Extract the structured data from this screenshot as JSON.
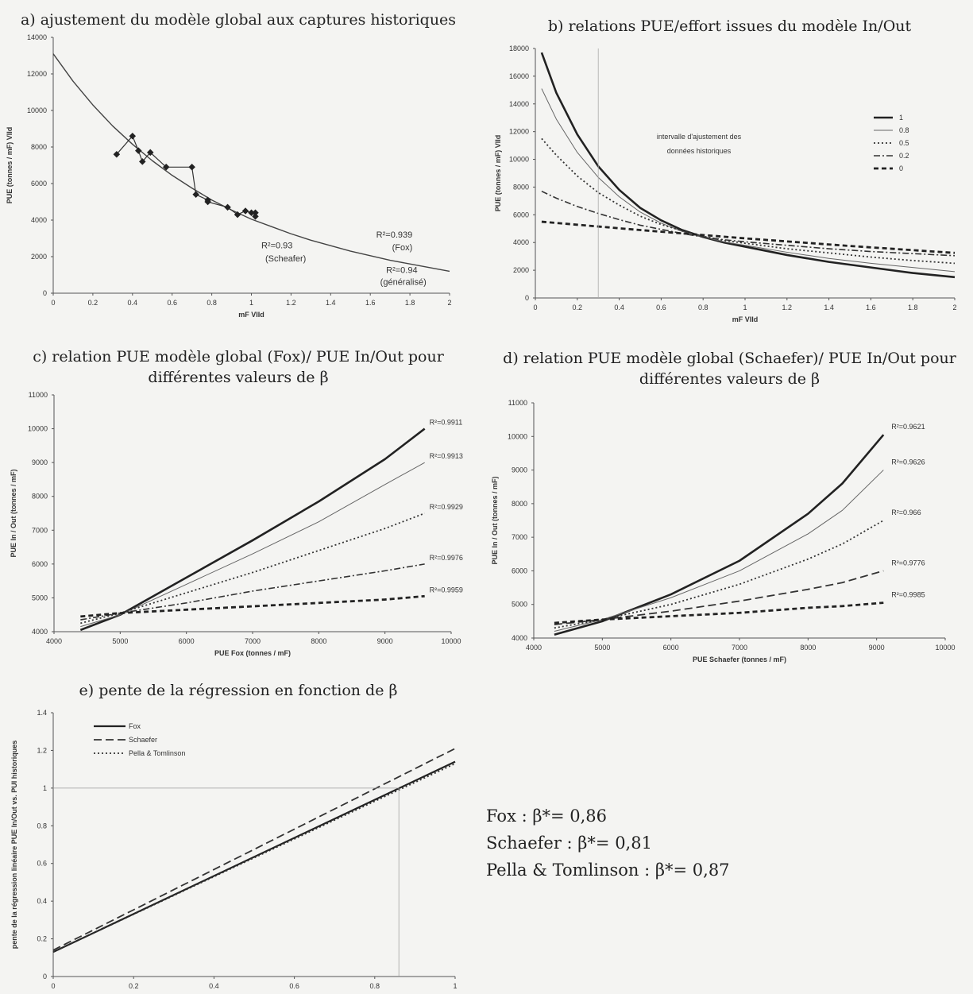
{
  "chart_data": [
    {
      "id": "a",
      "type": "line",
      "title": "a) ajustement du modèle global aux captures historiques",
      "xlabel": "mF VIId",
      "ylabel": "PUE (tonnes / mF) VIId",
      "xlim": [
        0,
        2
      ],
      "ylim": [
        0,
        14000
      ],
      "xticks": [
        "0",
        "0.2",
        "0.4",
        "0.6",
        "0.8",
        "1",
        "1.2",
        "1.4",
        "1.6",
        "1.8",
        "2"
      ],
      "yticks": [
        "0",
        "2000",
        "4000",
        "6000",
        "8000",
        "10000",
        "12000",
        "14000"
      ],
      "series": [
        {
          "style": "fit",
          "x": [
            0,
            0.1,
            0.2,
            0.3,
            0.4,
            0.5,
            0.6,
            0.7,
            0.8,
            0.9,
            1.0,
            1.1,
            1.2,
            1.3,
            1.4,
            1.5,
            1.6,
            1.7,
            1.8,
            1.9,
            2.0
          ],
          "y": [
            13100,
            11600,
            10300,
            9150,
            8150,
            7250,
            6450,
            5750,
            5100,
            4550,
            4050,
            3650,
            3250,
            2900,
            2600,
            2300,
            2050,
            1800,
            1600,
            1400,
            1200
          ]
        },
        {
          "style": "observed",
          "x": [
            0.32,
            0.4,
            0.43,
            0.45,
            0.49,
            0.57,
            0.7,
            0.72,
            0.78,
            0.78,
            0.88,
            0.93,
            0.97,
            1.0,
            1.02,
            1.02
          ],
          "y": [
            7600,
            8600,
            7800,
            7200,
            7700,
            6900,
            6900,
            5400,
            5100,
            5000,
            4700,
            4300,
            4500,
            4400,
            4400,
            4200
          ]
        }
      ],
      "annotations": [
        {
          "text": "R²=0.93",
          "x": 1.05,
          "y": 2450
        },
        {
          "text": "(Scheafer)",
          "x": 1.07,
          "y": 1750
        },
        {
          "text": "R²=0.939",
          "x": 1.63,
          "y": 3050
        },
        {
          "text": "(Fox)",
          "x": 1.71,
          "y": 2350
        },
        {
          "text": "R²=0.94",
          "x": 1.68,
          "y": 1100
        },
        {
          "text": "(généralisé)",
          "x": 1.65,
          "y": 450
        }
      ]
    },
    {
      "id": "b",
      "type": "line",
      "title": "b) relations PUE/effort issues du modèle In/Out",
      "xlabel": "mF VIId",
      "ylabel": "PUE (tonnes / mF) VIId",
      "xlim": [
        0,
        2
      ],
      "ylim": [
        0,
        18000
      ],
      "xticks": [
        "0",
        "0.2",
        "0.4",
        "0.6",
        "0.8",
        "1",
        "1.2",
        "1.4",
        "1.6",
        "1.8",
        "2"
      ],
      "yticks": [
        "0",
        "2000",
        "4000",
        "6000",
        "8000",
        "10000",
        "12000",
        "14000",
        "16000",
        "18000"
      ],
      "legend_position": "right",
      "annotation": "intervalle d'ajustement des données historiques",
      "series": [
        {
          "name": "1",
          "style": "solid-thick",
          "x": [
            0.03,
            0.1,
            0.2,
            0.3,
            0.4,
            0.5,
            0.6,
            0.7,
            0.8,
            0.9,
            1.0,
            1.2,
            1.4,
            1.6,
            1.8,
            2.0
          ],
          "y": [
            17700,
            14800,
            11800,
            9500,
            7800,
            6500,
            5600,
            4900,
            4400,
            4000,
            3700,
            3100,
            2600,
            2200,
            1800,
            1500
          ]
        },
        {
          "name": "0.8",
          "style": "solid-thin",
          "x": [
            0.03,
            0.1,
            0.2,
            0.3,
            0.4,
            0.5,
            0.6,
            0.7,
            0.8,
            0.9,
            1.0,
            1.2,
            1.4,
            1.6,
            1.8,
            2.0
          ],
          "y": [
            15100,
            12900,
            10500,
            8700,
            7300,
            6200,
            5400,
            4800,
            4400,
            4050,
            3800,
            3300,
            2850,
            2500,
            2200,
            1900
          ]
        },
        {
          "name": "0.5",
          "style": "dotted",
          "x": [
            0.03,
            0.1,
            0.2,
            0.3,
            0.4,
            0.5,
            0.6,
            0.7,
            0.8,
            0.9,
            1.0,
            1.2,
            1.4,
            1.6,
            1.8,
            2.0
          ],
          "y": [
            11500,
            10300,
            8800,
            7600,
            6700,
            5900,
            5300,
            4850,
            4450,
            4150,
            3950,
            3550,
            3250,
            2950,
            2700,
            2500
          ]
        },
        {
          "name": "0.2",
          "style": "dashdot",
          "x": [
            0.03,
            0.1,
            0.2,
            0.3,
            0.4,
            0.5,
            0.6,
            0.7,
            0.8,
            0.9,
            1.0,
            1.2,
            1.4,
            1.6,
            1.8,
            2.0
          ],
          "y": [
            7700,
            7200,
            6600,
            6100,
            5650,
            5250,
            4950,
            4650,
            4400,
            4200,
            4050,
            3800,
            3550,
            3350,
            3200,
            3050
          ]
        },
        {
          "name": "0",
          "style": "dashed-thick",
          "x": [
            0.03,
            0.5,
            1.0,
            1.5,
            2.0
          ],
          "y": [
            5500,
            4900,
            4300,
            3750,
            3250
          ]
        }
      ]
    },
    {
      "id": "c",
      "type": "line",
      "title": "c) relation PUE modèle global (Fox)/ PUE In/Out pour différentes valeurs de β",
      "xlabel": "PUE Fox (tonnes / mF)",
      "ylabel": "PUE In / Out (tonnes / mF)",
      "xlim": [
        4000,
        10000
      ],
      "ylim": [
        4000,
        11000
      ],
      "xticks": [
        "4000",
        "5000",
        "6000",
        "7000",
        "8000",
        "9000",
        "10000"
      ],
      "yticks": [
        "4000",
        "5000",
        "6000",
        "7000",
        "8000",
        "9000",
        "10000",
        "11000"
      ],
      "series": [
        {
          "label": "R²=0.9911",
          "style": "solid-thick",
          "x": [
            4400,
            5000,
            6000,
            7000,
            8000,
            9000,
            9600
          ],
          "y": [
            4050,
            4500,
            5600,
            6700,
            7850,
            9100,
            10000
          ]
        },
        {
          "label": "R²=0.9913",
          "style": "solid-thin",
          "x": [
            4400,
            5000,
            6000,
            7000,
            8000,
            9000,
            9600
          ],
          "y": [
            4150,
            4500,
            5400,
            6300,
            7250,
            8350,
            9000
          ]
        },
        {
          "label": "R²=0.9929",
          "style": "dotted",
          "x": [
            4400,
            5000,
            6000,
            7000,
            8000,
            9000,
            9600
          ],
          "y": [
            4250,
            4550,
            5150,
            5750,
            6400,
            7050,
            7500
          ]
        },
        {
          "label": "R²=0.9976",
          "style": "dashdot",
          "x": [
            4400,
            5000,
            6000,
            7000,
            8000,
            9000,
            9600
          ],
          "y": [
            4350,
            4550,
            4850,
            5200,
            5500,
            5800,
            6000
          ]
        },
        {
          "label": "R²=0.9959",
          "style": "dashed-thick",
          "x": [
            4400,
            5000,
            6000,
            7000,
            8000,
            9000,
            9600
          ],
          "y": [
            4450,
            4550,
            4650,
            4750,
            4850,
            4950,
            5050
          ]
        }
      ]
    },
    {
      "id": "d",
      "type": "line",
      "title": "d) relation PUE modèle global (Schaefer)/ PUE In/Out pour différentes valeurs de β",
      "xlabel": "PUE Schaefer (tonnes / mF)",
      "ylabel": "PUE In / Out (tonnes / mF)",
      "xlim": [
        4000,
        10000
      ],
      "ylim": [
        4000,
        11000
      ],
      "xticks": [
        "4000",
        "5000",
        "6000",
        "7000",
        "8000",
        "9000",
        "10000"
      ],
      "yticks": [
        "4000",
        "5000",
        "6000",
        "7000",
        "8000",
        "9000",
        "10000",
        "11000"
      ],
      "series": [
        {
          "label": "R²=0.9621",
          "style": "solid-thick",
          "x": [
            4300,
            5000,
            6000,
            7000,
            8000,
            8500,
            9100
          ],
          "y": [
            4100,
            4500,
            5300,
            6300,
            7700,
            8600,
            10050
          ]
        },
        {
          "label": "R²=0.9626",
          "style": "solid-thin",
          "x": [
            4300,
            5000,
            6000,
            7000,
            8000,
            8500,
            9100
          ],
          "y": [
            4200,
            4550,
            5200,
            6000,
            7100,
            7800,
            9000
          ]
        },
        {
          "label": "R²=0.966",
          "style": "dotted",
          "x": [
            4300,
            5000,
            6000,
            7000,
            8000,
            8500,
            9100
          ],
          "y": [
            4300,
            4550,
            5000,
            5600,
            6350,
            6800,
            7500
          ]
        },
        {
          "label": "R²=0.9776",
          "style": "dashed",
          "x": [
            4300,
            5000,
            6000,
            7000,
            8000,
            8500,
            9100
          ],
          "y": [
            4400,
            4550,
            4800,
            5100,
            5450,
            5650,
            6000
          ]
        },
        {
          "label": "R²=0.9985",
          "style": "dashed-thick",
          "x": [
            4300,
            5000,
            6000,
            7000,
            8000,
            8500,
            9100
          ],
          "y": [
            4450,
            4550,
            4650,
            4750,
            4900,
            4950,
            5050
          ]
        }
      ]
    },
    {
      "id": "e",
      "type": "line",
      "title": "e) pente de la régression en fonction de β",
      "xlabel": "beta",
      "ylabel": "pente de la régression linéaire PUE In/Out vs. PUI historiques",
      "xlim": [
        0,
        1
      ],
      "ylim": [
        0,
        1.4
      ],
      "xticks": [
        "0",
        "0.2",
        "0.4",
        "0.6",
        "0.8",
        "1"
      ],
      "yticks": [
        "0",
        "0.2",
        "0.4",
        "0.6",
        "0.8",
        "1",
        "1.2",
        "1.4"
      ],
      "legend_position": "top-left",
      "series": [
        {
          "name": "Fox",
          "style": "solid",
          "x": [
            0,
            1
          ],
          "y": [
            0.13,
            1.14
          ]
        },
        {
          "name": "Schaefer",
          "style": "dashed",
          "x": [
            0,
            1
          ],
          "y": [
            0.14,
            1.21
          ]
        },
        {
          "name": "Pella & Tomlinson",
          "style": "dotted",
          "x": [
            0,
            1
          ],
          "y": [
            0.13,
            1.13
          ]
        }
      ]
    }
  ],
  "summary": [
    "Fox : β*= 0,86",
    "Schaefer : β*= 0,81",
    "Pella & Tomlinson : β*= 0,87"
  ]
}
